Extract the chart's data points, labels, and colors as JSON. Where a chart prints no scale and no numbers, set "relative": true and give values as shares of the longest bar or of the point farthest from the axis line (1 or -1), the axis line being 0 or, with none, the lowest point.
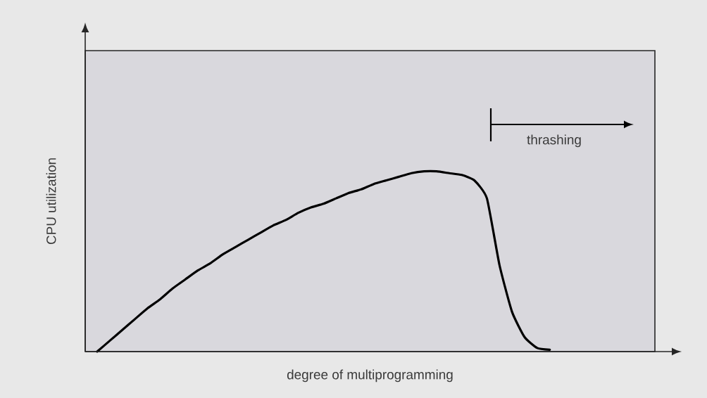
{
  "chart_data": {
    "type": "line",
    "relative": true,
    "xlabel": "degree of multiprogramming",
    "ylabel": "CPU utilization",
    "categories": [
      null,
      null,
      null,
      null,
      null,
      null,
      null,
      null,
      null,
      null,
      null,
      null,
      null,
      null,
      null,
      null,
      null,
      null,
      null,
      null,
      null,
      null,
      null,
      null,
      null,
      null,
      null,
      null,
      null,
      null,
      null,
      null,
      null,
      null,
      null,
      null,
      null,
      null,
      null,
      null,
      null,
      null,
      null,
      null,
      null
    ],
    "values": [
      0,
      0.06,
      0.12,
      0.18,
      0.24,
      0.29,
      0.35,
      0.4,
      0.45,
      0.49,
      0.54,
      0.58,
      0.62,
      0.66,
      0.7,
      0.73,
      0.77,
      0.8,
      0.82,
      0.85,
      0.88,
      0.9,
      0.93,
      0.95,
      0.97,
      0.99,
      1.0,
      1.0,
      0.99,
      0.98,
      0.95,
      0.85,
      0.48,
      0.22,
      0.08,
      0.02,
      0.01,
      null,
      null,
      null,
      null,
      null,
      null,
      null,
      null
    ],
    "color": "#000000",
    "marker": "none",
    "annotations": [
      "thrashing"
    ]
  }
}
